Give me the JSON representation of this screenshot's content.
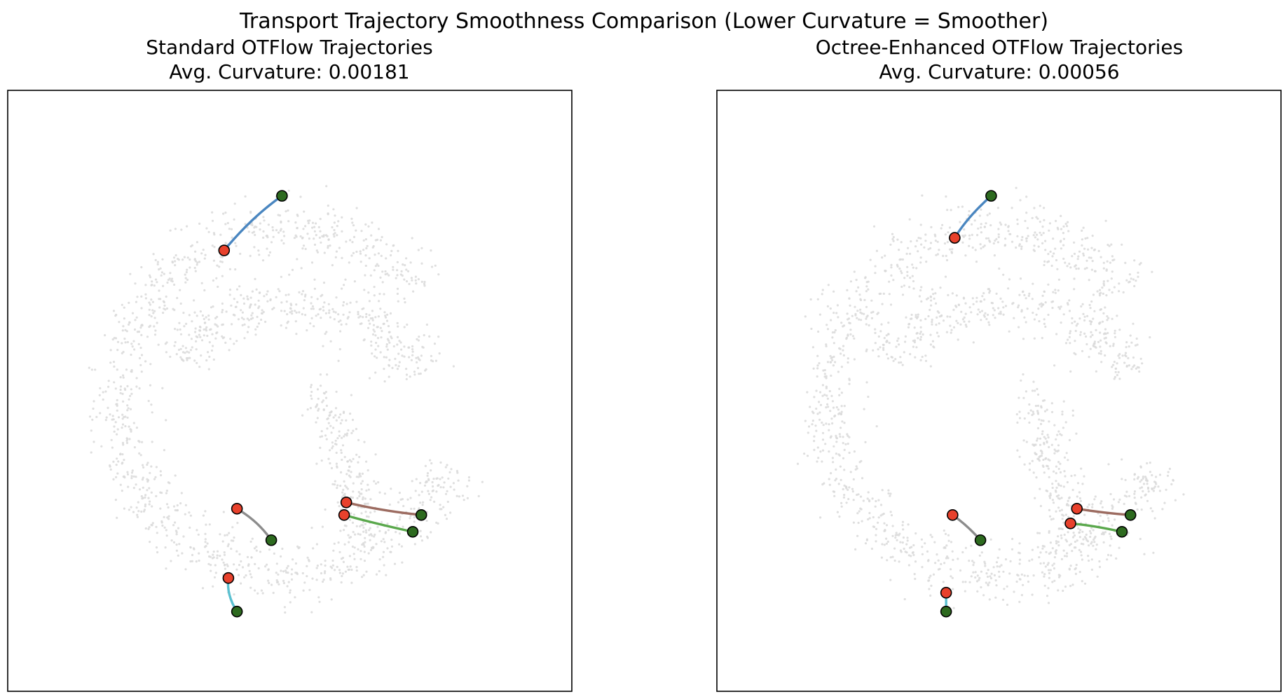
{
  "figure": {
    "title": "Transport Trajectory Smoothness Comparison (Lower Curvature = Smoother)"
  },
  "colors": {
    "background_points": "#d9d9d9",
    "start_marker": "#e8412c",
    "end_marker": "#2d6a1f",
    "marker_edge": "#000000",
    "frame": "#000000"
  },
  "legend_semantics": {
    "start_marker_meaning": "trajectory start point (red)",
    "end_marker_meaning": "trajectory end point (green)"
  },
  "chart_data": [
    {
      "type": "scatter",
      "title": "Standard OTFlow Trajectories",
      "subtitle": "Avg. Curvature: 0.00181",
      "xlabel": "",
      "ylabel": "",
      "xlim": [
        -1,
        1
      ],
      "ylim": [
        -1,
        1
      ],
      "grid": false,
      "axes_ticks": false,
      "background": {
        "description": "spiral point cloud",
        "count": 1700,
        "seed": 7
      },
      "trajectories": [
        {
          "name": "blue",
          "color": "#4a86c0",
          "start": [
            -0.28,
            0.64
          ],
          "ctrl": [
            -0.15,
            0.8
          ],
          "end": [
            -0.01,
            0.9
          ]
        },
        {
          "name": "brown",
          "color": "#9c6b60",
          "start": [
            0.29,
            -0.56
          ],
          "ctrl": [
            0.45,
            -0.6
          ],
          "end": [
            0.64,
            -0.62
          ]
        },
        {
          "name": "green",
          "color": "#5aa84c",
          "start": [
            0.28,
            -0.62
          ],
          "ctrl": [
            0.42,
            -0.66
          ],
          "end": [
            0.6,
            -0.7
          ]
        },
        {
          "name": "gray",
          "color": "#8c8c8c",
          "start": [
            -0.22,
            -0.59
          ],
          "ctrl": [
            -0.12,
            -0.65
          ],
          "end": [
            -0.06,
            -0.74
          ]
        },
        {
          "name": "cyan",
          "color": "#5bc0d0",
          "start": [
            -0.26,
            -0.92
          ],
          "ctrl": [
            -0.27,
            -1.0
          ],
          "end": [
            -0.22,
            -1.08
          ]
        }
      ]
    },
    {
      "type": "scatter",
      "title": "Octree-Enhanced OTFlow Trajectories",
      "subtitle": "Avg. Curvature: 0.00056",
      "xlabel": "",
      "ylabel": "",
      "xlim": [
        -1,
        1
      ],
      "ylim": [
        -1,
        1
      ],
      "grid": false,
      "axes_ticks": false,
      "background": {
        "description": "spiral point cloud",
        "count": 1700,
        "seed": 11
      },
      "trajectories": [
        {
          "name": "blue",
          "color": "#4a86c0",
          "start": [
            -0.18,
            0.7
          ],
          "ctrl": [
            -0.12,
            0.8
          ],
          "end": [
            -0.01,
            0.9
          ]
        },
        {
          "name": "brown",
          "color": "#9c6b60",
          "start": [
            0.39,
            -0.59
          ],
          "ctrl": [
            0.51,
            -0.61
          ],
          "end": [
            0.64,
            -0.62
          ]
        },
        {
          "name": "green",
          "color": "#5aa84c",
          "start": [
            0.36,
            -0.66
          ],
          "ctrl": [
            0.47,
            -0.67
          ],
          "end": [
            0.6,
            -0.7
          ]
        },
        {
          "name": "gray",
          "color": "#8c8c8c",
          "start": [
            -0.19,
            -0.62
          ],
          "ctrl": [
            -0.12,
            -0.67
          ],
          "end": [
            -0.06,
            -0.74
          ]
        },
        {
          "name": "cyan",
          "color": "#5bc0d0",
          "start": [
            -0.22,
            -0.99
          ],
          "ctrl": [
            -0.22,
            -1.03
          ],
          "end": [
            -0.22,
            -1.08
          ]
        }
      ]
    }
  ]
}
